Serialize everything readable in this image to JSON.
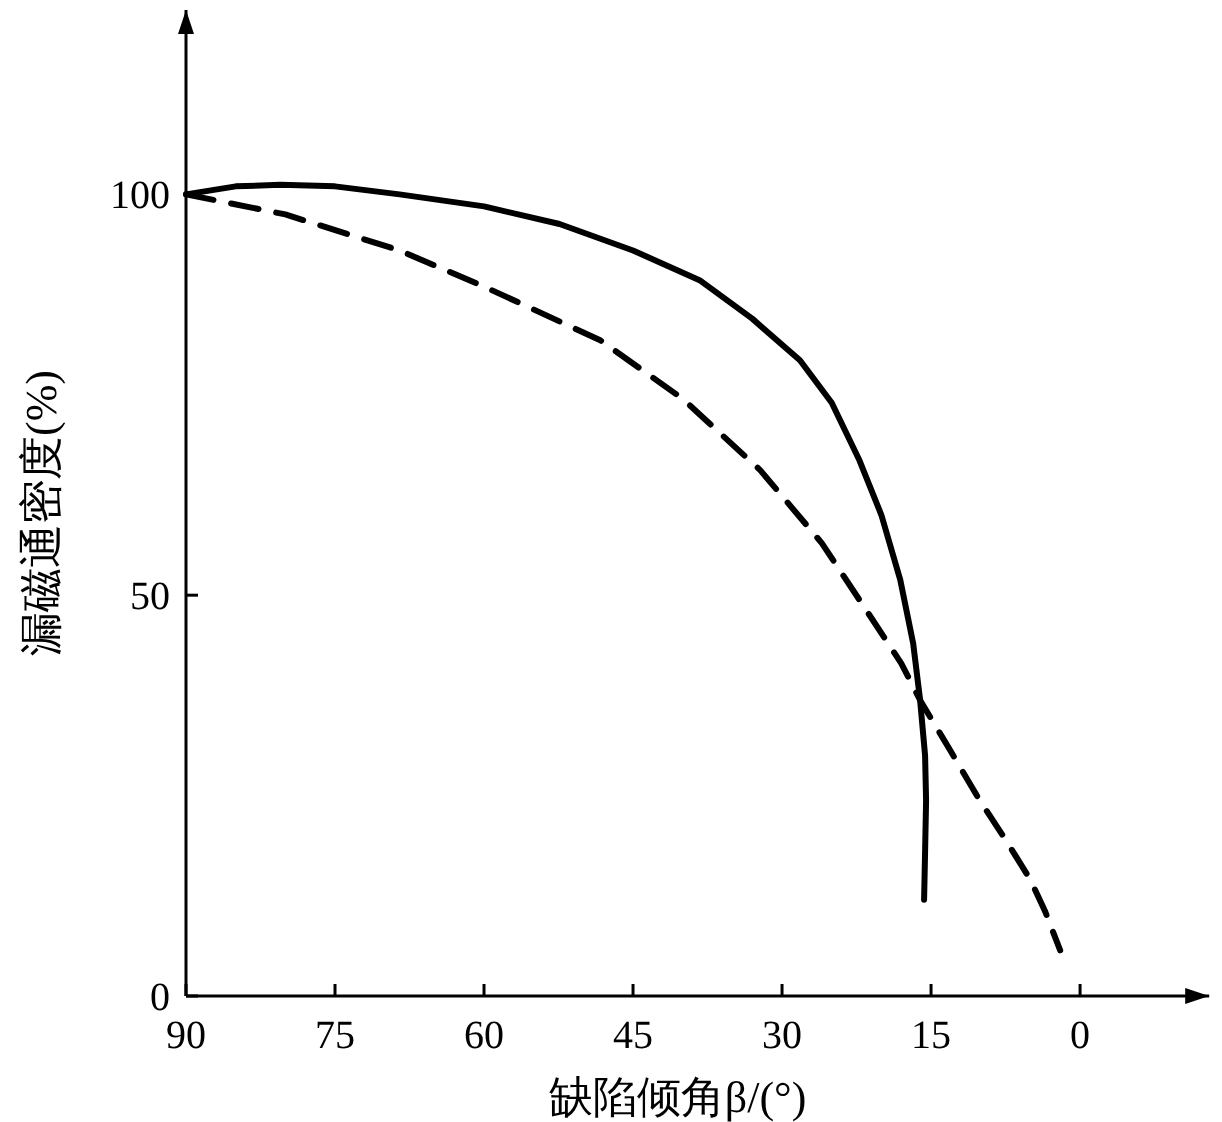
{
  "chart_data": {
    "type": "line",
    "xlabel": "缺陷倾角β/(°)",
    "ylabel": "漏磁通密度(%)",
    "xlim": [
      90,
      -13
    ],
    "ylim": [
      0,
      123
    ],
    "xticks": [
      90,
      75,
      60,
      45,
      30,
      15,
      0
    ],
    "yticks": [
      0,
      50,
      100
    ],
    "marker": "none",
    "series": [
      {
        "color": "#000000",
        "line_style": "solid",
        "x": [
          90,
          85,
          80.5,
          75,
          68.5,
          60,
          52.4,
          45,
          38.3,
          33,
          28.2,
          25,
          22.2,
          20,
          18.1,
          16.8,
          16.1,
          15.6,
          15.5,
          15.6,
          15.7
        ],
        "values": [
          100,
          101,
          101.2,
          101,
          100,
          98.5,
          96.3,
          93,
          89.3,
          84.5,
          79.3,
          74,
          66.8,
          60,
          51.9,
          44,
          36.9,
          30,
          24.4,
          18,
          12
        ]
      },
      {
        "color": "#000000",
        "line_style": "dashed",
        "x": [
          90,
          80,
          68.5,
          60,
          48.3,
          40,
          32.2,
          26,
          22.2,
          18,
          16.1,
          13,
          10.1,
          7.5,
          5,
          3.5,
          2
        ],
        "values": [
          100,
          97.5,
          93,
          88.5,
          81.8,
          74.5,
          65.6,
          56.5,
          49.4,
          41.5,
          36.9,
          30.5,
          24.4,
          19.5,
          14.5,
          10.5,
          5.7
        ]
      }
    ]
  }
}
